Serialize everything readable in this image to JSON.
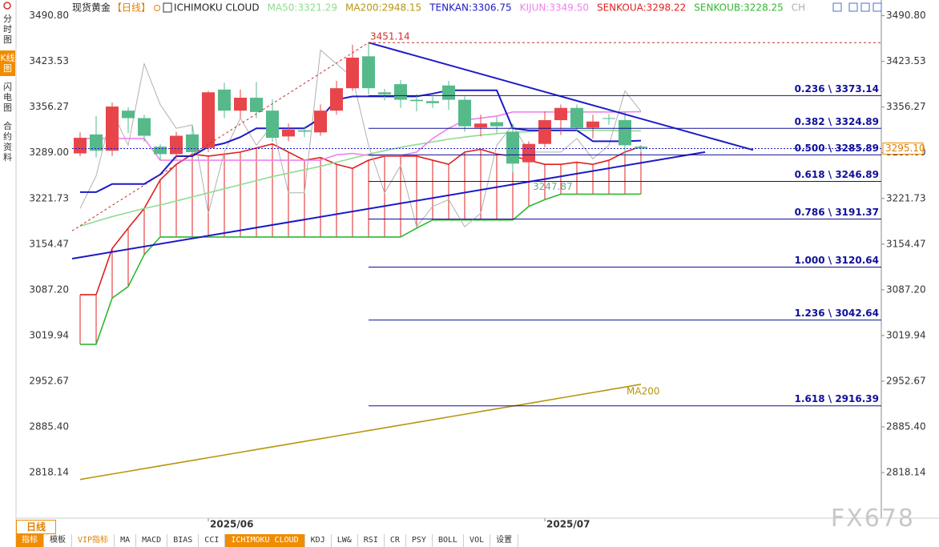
{
  "sidebar": [
    "分时图",
    "K线图",
    "闪电图",
    "合约资料"
  ],
  "header": {
    "symbol": "现货黄金",
    "period": "【日线】",
    "indicator": "ICHIMOKU CLOUD"
  },
  "chart_data": {
    "type": "candlestick",
    "categories": [
      null,
      null,
      null,
      null,
      null,
      null,
      null,
      null,
      "2025/06",
      null,
      null,
      null,
      null,
      null,
      null,
      null,
      null,
      null,
      null,
      null,
      null,
      null,
      null,
      null,
      null,
      null,
      null,
      null,
      null,
      "2025/07",
      null,
      null,
      null,
      null,
      null,
      null
    ],
    "open": [
      3288,
      3316,
      3292,
      3351,
      3340,
      3298,
      3287,
      3316,
      3296,
      3382,
      3351,
      3370,
      3351,
      3313,
      3322,
      3319,
      3351,
      3384,
      3431,
      3378,
      3390,
      3367,
      3365,
      3388,
      3367,
      3326,
      3334,
      3320,
      3275,
      3302,
      3337,
      3355,
      3326,
      3340,
      3337,
      3298
    ],
    "high": [
      3319,
      3343,
      3363,
      3356,
      3345,
      3302,
      3320,
      3330,
      3380,
      3392,
      3382,
      3393,
      3368,
      3332,
      3328,
      3360,
      3395,
      3448,
      3451.14,
      3383,
      3396,
      3375,
      3372,
      3395,
      3372,
      3345,
      3342,
      3332,
      3306,
      3350,
      3360,
      3360,
      3345,
      3346,
      3350,
      3300
    ],
    "low": [
      3284,
      3282,
      3284,
      3318,
      3305,
      3278,
      3280,
      3285,
      3290,
      3340,
      3340,
      3340,
      3305,
      3306,
      3312,
      3314,
      3345,
      3380,
      3375,
      3366,
      3355,
      3350,
      3355,
      3352,
      3320,
      3313,
      3318,
      3260,
      3270,
      3297,
      3315,
      3320,
      3310,
      3330,
      3285,
      3290
    ],
    "close": [
      3311,
      3292,
      3357,
      3340,
      3314,
      3287,
      3314,
      3290,
      3378,
      3351,
      3370,
      3349,
      3311,
      3323,
      3320,
      3351,
      3384,
      3429,
      3384,
      3375,
      3367,
      3365,
      3362,
      3367,
      3328,
      3332,
      3328,
      3273,
      3302,
      3337,
      3355,
      3326,
      3335,
      3339,
      3300,
      3295.1
    ],
    "up_color": "#e8454a",
    "down_color": "#56b98a",
    "cloud_color": "#e02020",
    "series": [
      {
        "name": "MA50:3321.29",
        "color": "#8fdc8f",
        "values": [
          3181,
          3188,
          3195,
          3201,
          3207,
          3212,
          3218,
          3224,
          3230,
          3236,
          3242,
          3248,
          3254,
          3259,
          3264,
          3269,
          3275,
          3281,
          3287,
          3292,
          3297,
          3301,
          3305,
          3309,
          3312,
          3315,
          3317,
          3319,
          3320,
          3321,
          3322,
          3322,
          3322,
          3322,
          3321,
          3321.29
        ]
      },
      {
        "name": "MA200:2948.15",
        "color": "#b8960c",
        "values": [
          2808,
          2812,
          2816,
          2820,
          2824,
          2828,
          2832,
          2836,
          2840,
          2844,
          2848,
          2852,
          2856,
          2860,
          2864,
          2868,
          2872,
          2876,
          2880,
          2884,
          2888,
          2892,
          2896,
          2900,
          2904,
          2908,
          2912,
          2916,
          2920,
          2924,
          2928,
          2932,
          2936,
          2940,
          2944,
          2948.15
        ]
      },
      {
        "name": "TENKAN:3306.75",
        "color": "#1a1ac8",
        "values": [
          3231,
          3231,
          3243,
          3243,
          3243,
          3257,
          3284,
          3284,
          3298,
          3303,
          3312,
          3325,
          3325,
          3325,
          3325,
          3340,
          3367,
          3372,
          3372,
          3372,
          3372,
          3372,
          3376,
          3381,
          3381,
          3381,
          3381,
          3325,
          3322,
          3322,
          3322,
          3322,
          3306,
          3306,
          3306,
          3306.75
        ]
      },
      {
        "name": "KIJUN:3349.50",
        "color": "#ee82ee",
        "values": [
          3310,
          3310,
          3310,
          3310,
          3310,
          3278,
          3278,
          3278,
          3278,
          3278,
          3278,
          3278,
          3278,
          3278,
          3278,
          3278,
          3286,
          3288,
          3285,
          3285,
          3285,
          3290,
          3310,
          3325,
          3337,
          3340,
          3343,
          3349,
          3349,
          3349,
          3349,
          3349,
          3349,
          3349,
          3349,
          3349.5
        ]
      },
      {
        "name": "SENKOUA:3298.22",
        "color": "#e02020",
        "values": [
          3080,
          3080,
          3148,
          3178,
          3207,
          3249,
          3272,
          3287,
          3284,
          3287,
          3290,
          3296,
          3302,
          3290,
          3278,
          3282,
          3272,
          3266,
          3278,
          3284,
          3284,
          3284,
          3278,
          3272,
          3290,
          3294,
          3287,
          3284,
          3278,
          3272,
          3272,
          3275,
          3272,
          3278,
          3290,
          3298.22
        ]
      },
      {
        "name": "SENKOUB:3228.25",
        "color": "#30b830",
        "values": [
          3007,
          3007,
          3075,
          3092,
          3139,
          3165,
          3165,
          3165,
          3165,
          3165,
          3165,
          3165,
          3165,
          3165,
          3165,
          3165,
          3165,
          3165,
          3165,
          3165,
          3165,
          3178,
          3190,
          3190,
          3190,
          3190,
          3190,
          3190,
          3210,
          3220,
          3228,
          3228,
          3228,
          3228,
          3228,
          3228.25
        ]
      },
      {
        "name": "CH",
        "color": "#b0b0b0",
        "values": [
          3207,
          3255,
          3350,
          3300,
          3420,
          3360,
          3325,
          3330,
          3200,
          3290,
          3340,
          3300,
          3330,
          3230,
          3230,
          3440,
          3420,
          3400,
          3300,
          3230,
          3270,
          3180,
          3210,
          3220,
          3180,
          3200,
          3300,
          3330,
          3290,
          3290,
          3290,
          3310,
          3280,
          3300,
          3380,
          3350
        ]
      }
    ],
    "ma200_label": "MA200",
    "note_value": 3247.87,
    "last_price": {
      "value": 3295.1,
      "label": "3295.10"
    },
    "trendlines": [
      {
        "color": "#1a1ac8",
        "dash": false,
        "x": [
          18,
          42
        ],
        "values": [
          3451.14,
          3293
        ]
      },
      {
        "color": "#1a1ac8",
        "dash": false,
        "x": [
          -0.5,
          39
        ],
        "values": [
          3133,
          3290
        ]
      },
      {
        "color": "#c03030",
        "dash": true,
        "x": [
          -0.5,
          18
        ],
        "values": [
          3174,
          3451.14
        ]
      }
    ],
    "fib": [
      {
        "label": "0.236 \\ 3373.14",
        "value": 3373.14
      },
      {
        "label": "0.382 \\ 3324.89",
        "value": 3324.89
      },
      {
        "label": "0.500 \\ 3285.89",
        "value": 3285.89
      },
      {
        "label": "0.618 \\ 3246.89",
        "value": 3246.89
      },
      {
        "label": "0.786 \\ 3191.37",
        "value": 3191.37
      },
      {
        "label": "1.000 \\ 3120.64",
        "value": 3120.64
      },
      {
        "label": "1.236 \\ 3042.64",
        "value": 3042.64
      },
      {
        "label": "1.618 \\ 2916.39",
        "value": 2916.39
      }
    ],
    "ylim": [
      2751,
      3508
    ],
    "yticks": [
      {
        "value": 3490.8,
        "label": "3490.80"
      },
      3423.53,
      3356.27,
      {
        "value": 3289,
        "label": "3289.00"
      },
      3221.73,
      3154.47,
      {
        "value": 3087.2,
        "label": "3087.20"
      },
      3019.94,
      2952.67,
      {
        "value": 2885.4,
        "label": "2885.40"
      },
      2818.14
    ]
  },
  "footer": {
    "period_tab": "日线",
    "toolbar": [
      "指标",
      "模板",
      "VIP指标",
      "MA",
      "MACD",
      "BIAS",
      "CCI",
      "ICHIMOKU CLOUD",
      "KDJ",
      "LW&",
      "RSI",
      "CR",
      "PSY",
      "BOLL",
      "VOL",
      "设置"
    ]
  },
  "watermark": "FX678"
}
